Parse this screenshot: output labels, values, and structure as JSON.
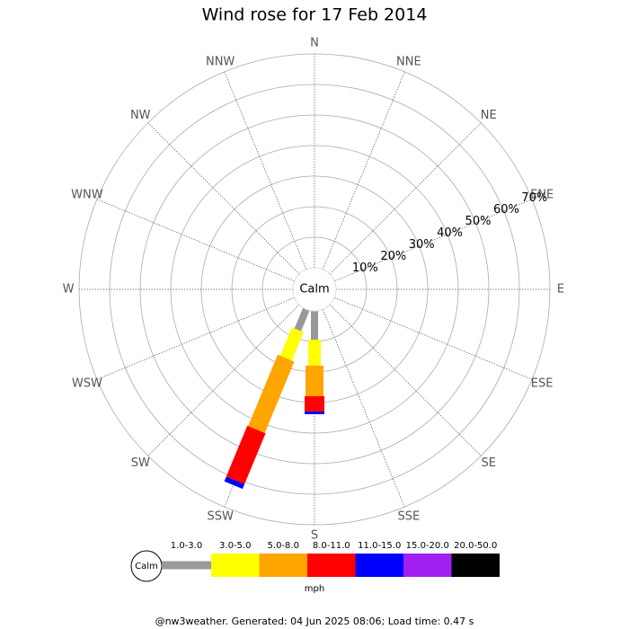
{
  "chart_data": {
    "type": "windrose",
    "title": "Wind rose for 17 Feb 2014",
    "calm_label": "Calm",
    "directions": [
      "N",
      "NNE",
      "NE",
      "ENE",
      "E",
      "ESE",
      "SE",
      "SSE",
      "S",
      "SSW",
      "SW",
      "WSW",
      "W",
      "WNW",
      "NW",
      "NNW"
    ],
    "rlim": [
      0,
      70
    ],
    "rticks": [
      {
        "value": 10,
        "label": "10%"
      },
      {
        "value": 20,
        "label": "20%"
      },
      {
        "value": 30,
        "label": "30%"
      },
      {
        "value": 40,
        "label": "40%"
      },
      {
        "value": 50,
        "label": "50%"
      },
      {
        "value": 60,
        "label": "60%"
      },
      {
        "value": 70,
        "label": "70%"
      }
    ],
    "series": [
      {
        "name": "1.0-3.0",
        "color": "#999999",
        "values": [
          0,
          0,
          0,
          0,
          0,
          0,
          0,
          0,
          9.4,
          7.3,
          0,
          0,
          0,
          0,
          0,
          0
        ]
      },
      {
        "name": "3.0-5.0",
        "color": "#ffff00",
        "values": [
          0,
          0,
          0,
          0,
          0,
          0,
          0,
          0,
          8.5,
          10,
          0,
          0,
          0,
          0,
          0,
          0
        ]
      },
      {
        "name": "5.0-8.0",
        "color": "#ffa500",
        "values": [
          0,
          0,
          0,
          0,
          0,
          0,
          0,
          0,
          10,
          25.3,
          0,
          0,
          0,
          0,
          0,
          0
        ]
      },
      {
        "name": "8.0-11.0",
        "color": "#ff0000",
        "values": [
          0,
          0,
          0,
          0,
          0,
          0,
          0,
          0,
          5,
          18,
          0,
          0,
          0,
          0,
          0,
          0
        ]
      },
      {
        "name": "11.0-15.0",
        "color": "#0000ff",
        "values": [
          0,
          0,
          0,
          0,
          0,
          0,
          0,
          0,
          0.9,
          1.7,
          0,
          0,
          0,
          0,
          0,
          0
        ]
      },
      {
        "name": "15.0-20.0",
        "color": "#a020f0",
        "values": [
          0,
          0,
          0,
          0,
          0,
          0,
          0,
          0,
          0,
          0,
          0,
          0,
          0,
          0,
          0,
          0
        ]
      },
      {
        "name": "20.0-50.0",
        "color": "#000000",
        "values": [
          0,
          0,
          0,
          0,
          0,
          0,
          0,
          0,
          0,
          0,
          0,
          0,
          0,
          0,
          0,
          0
        ]
      }
    ],
    "legend_unit": "mph",
    "footer": "@nw3weather. Generated: 04 Jun 2025 08:06; Load time: 0.47 s"
  }
}
